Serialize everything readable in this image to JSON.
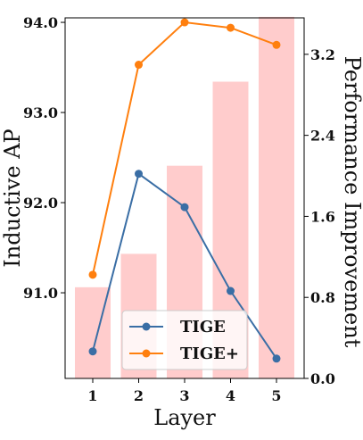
{
  "chart_data": {
    "type": "bar+line",
    "categories": [
      "1",
      "2",
      "3",
      "4",
      "5"
    ],
    "xlabel": "Layer",
    "ylabel_left": "Inductive AP",
    "ylabel_right": "Performance Improvement",
    "left_axis": {
      "ylim": [
        90.05,
        94.05
      ],
      "ticks": [
        91.0,
        92.0,
        93.0,
        94.0
      ],
      "tick_labels": [
        "91.0",
        "92.0",
        "93.0",
        "94.0"
      ]
    },
    "right_axis": {
      "ylim": [
        0.0,
        3.56
      ],
      "ticks": [
        0.0,
        0.8,
        1.6,
        2.4,
        3.2
      ],
      "tick_labels": [
        "0.0",
        "0.8",
        "1.6",
        "2.4",
        "3.2"
      ]
    },
    "bars": {
      "axis": "right",
      "color": "#ffcccc",
      "values": [
        0.9,
        1.23,
        2.1,
        2.93,
        3.57
      ]
    },
    "series": [
      {
        "name": "TIGE",
        "axis": "left",
        "color": "#3a6ea5",
        "values": [
          90.35,
          92.32,
          91.95,
          91.02,
          90.27
        ]
      },
      {
        "name": "TIGE+",
        "axis": "left",
        "color": "#ff7f0e",
        "values": [
          91.2,
          93.53,
          94.0,
          93.94,
          93.75
        ]
      }
    ],
    "legend": {
      "placement": "bottom-center",
      "entries": [
        "TIGE",
        "TIGE+"
      ]
    },
    "grid": false
  }
}
